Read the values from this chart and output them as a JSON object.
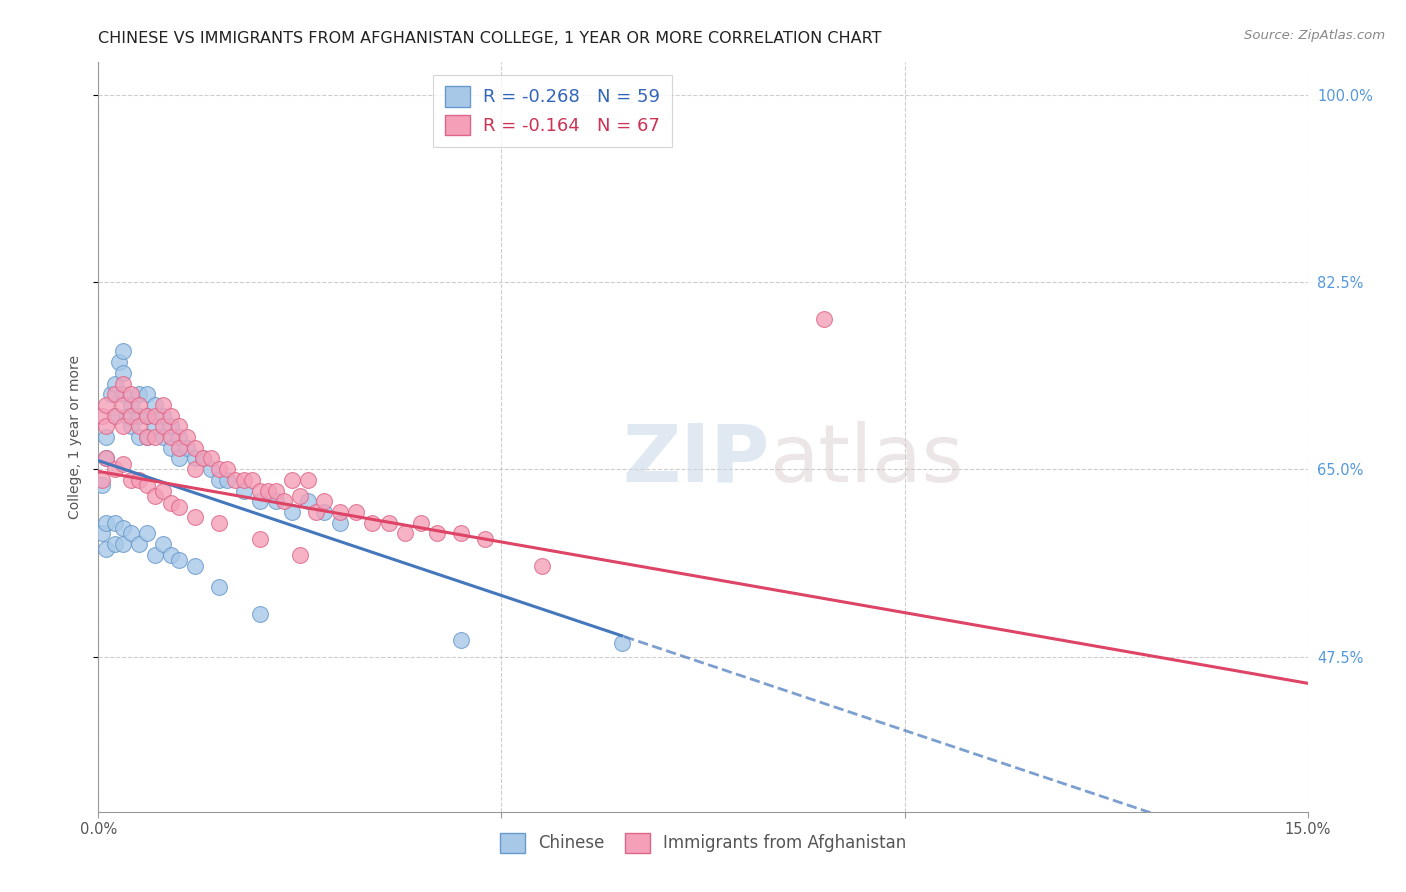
{
  "title": "CHINESE VS IMMIGRANTS FROM AFGHANISTAN COLLEGE, 1 YEAR OR MORE CORRELATION CHART",
  "source": "Source: ZipAtlas.com",
  "ylabel": "College, 1 year or more",
  "xlim": [
    0.0,
    0.15
  ],
  "ylim": [
    0.33,
    1.03
  ],
  "xticks": [
    0.0,
    0.05,
    0.1,
    0.15
  ],
  "xtick_labels": [
    "0.0%",
    "",
    "",
    "15.0%"
  ],
  "ytick_labels_right": [
    "100.0%",
    "82.5%",
    "65.0%",
    "47.5%"
  ],
  "ytick_values_right": [
    1.0,
    0.825,
    0.65,
    0.475
  ],
  "series": [
    {
      "label": "Chinese",
      "color": "#a8c8e8",
      "edge_color": "#6699cc",
      "R": -0.268,
      "N": 59,
      "trend_color": "#4477bb",
      "trend_solid_end": 0.065,
      "x": [
        0.0005,
        0.001,
        0.001,
        0.0015,
        0.002,
        0.002,
        0.0025,
        0.003,
        0.003,
        0.003,
        0.0035,
        0.004,
        0.004,
        0.005,
        0.005,
        0.005,
        0.006,
        0.006,
        0.006,
        0.007,
        0.007,
        0.008,
        0.008,
        0.009,
        0.009,
        0.01,
        0.01,
        0.011,
        0.012,
        0.013,
        0.014,
        0.015,
        0.016,
        0.018,
        0.02,
        0.022,
        0.024,
        0.026,
        0.028,
        0.03,
        0.0005,
        0.001,
        0.001,
        0.002,
        0.002,
        0.003,
        0.003,
        0.004,
        0.005,
        0.006,
        0.007,
        0.008,
        0.009,
        0.01,
        0.012,
        0.015,
        0.02,
        0.045,
        0.065
      ],
      "y": [
        0.635,
        0.68,
        0.66,
        0.72,
        0.73,
        0.7,
        0.75,
        0.76,
        0.74,
        0.72,
        0.7,
        0.71,
        0.69,
        0.72,
        0.7,
        0.68,
        0.72,
        0.7,
        0.68,
        0.71,
        0.69,
        0.7,
        0.68,
        0.69,
        0.67,
        0.68,
        0.66,
        0.67,
        0.66,
        0.66,
        0.65,
        0.64,
        0.64,
        0.63,
        0.62,
        0.62,
        0.61,
        0.62,
        0.61,
        0.6,
        0.59,
        0.6,
        0.575,
        0.6,
        0.58,
        0.595,
        0.58,
        0.59,
        0.58,
        0.59,
        0.57,
        0.58,
        0.57,
        0.565,
        0.56,
        0.54,
        0.515,
        0.49,
        0.488
      ],
      "trend_intercept": 0.658,
      "trend_slope": -2.52
    },
    {
      "label": "Immigrants from Afghanistan",
      "color": "#f4a0b8",
      "edge_color": "#dd6688",
      "R": -0.164,
      "N": 67,
      "trend_color": "#dd4466",
      "trend_solid_end": 0.15,
      "x": [
        0.0005,
        0.001,
        0.001,
        0.002,
        0.002,
        0.003,
        0.003,
        0.003,
        0.004,
        0.004,
        0.005,
        0.005,
        0.006,
        0.006,
        0.007,
        0.007,
        0.008,
        0.008,
        0.009,
        0.009,
        0.01,
        0.01,
        0.011,
        0.012,
        0.012,
        0.013,
        0.014,
        0.015,
        0.016,
        0.017,
        0.018,
        0.019,
        0.02,
        0.021,
        0.022,
        0.023,
        0.024,
        0.025,
        0.026,
        0.027,
        0.028,
        0.03,
        0.032,
        0.034,
        0.036,
        0.038,
        0.04,
        0.042,
        0.045,
        0.048,
        0.0005,
        0.001,
        0.002,
        0.003,
        0.004,
        0.005,
        0.006,
        0.007,
        0.008,
        0.009,
        0.01,
        0.012,
        0.015,
        0.02,
        0.025,
        0.055,
        0.09
      ],
      "y": [
        0.7,
        0.71,
        0.69,
        0.72,
        0.7,
        0.73,
        0.71,
        0.69,
        0.72,
        0.7,
        0.71,
        0.69,
        0.7,
        0.68,
        0.7,
        0.68,
        0.71,
        0.69,
        0.7,
        0.68,
        0.69,
        0.67,
        0.68,
        0.67,
        0.65,
        0.66,
        0.66,
        0.65,
        0.65,
        0.64,
        0.64,
        0.64,
        0.63,
        0.63,
        0.63,
        0.62,
        0.64,
        0.625,
        0.64,
        0.61,
        0.62,
        0.61,
        0.61,
        0.6,
        0.6,
        0.59,
        0.6,
        0.59,
        0.59,
        0.585,
        0.64,
        0.66,
        0.65,
        0.655,
        0.64,
        0.64,
        0.635,
        0.625,
        0.63,
        0.618,
        0.615,
        0.605,
        0.6,
        0.585,
        0.57,
        0.56,
        0.79
      ],
      "trend_intercept": 0.648,
      "trend_slope": -1.32
    }
  ],
  "watermark_zip": "ZIP",
  "watermark_atlas": "atlas",
  "background_color": "#ffffff",
  "grid_color": "#c8c8c8",
  "title_fontsize": 11.5,
  "axis_label_fontsize": 10,
  "tick_fontsize": 10.5,
  "legend_fontsize": 12
}
